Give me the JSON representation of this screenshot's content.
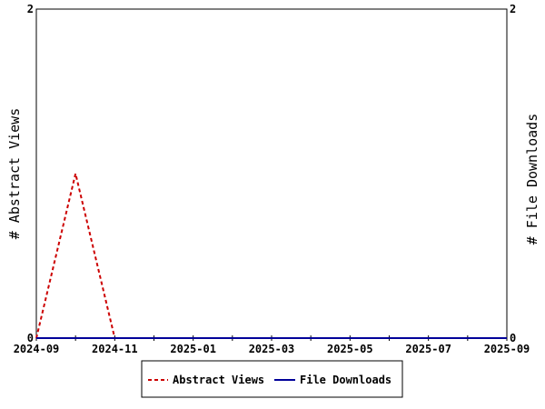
{
  "chart_data": {
    "type": "line",
    "x": [
      "2024-09",
      "2024-10",
      "2024-11",
      "2024-12",
      "2025-01",
      "2025-02",
      "2025-03",
      "2025-04",
      "2025-05",
      "2025-06",
      "2025-07",
      "2025-08",
      "2025-09"
    ],
    "x_tick_labels": [
      "2024-09",
      "2024-11",
      "2025-01",
      "2025-03",
      "2025-05",
      "2025-07",
      "2025-09"
    ],
    "series": [
      {
        "name": "Abstract Views",
        "axis": "left",
        "color": "#cc0000",
        "dash": "dashed",
        "values": [
          0,
          1,
          0,
          0,
          0,
          0,
          0,
          0,
          0,
          0,
          0,
          0,
          0
        ]
      },
      {
        "name": "File Downloads",
        "axis": "right",
        "color": "#000099",
        "dash": "solid",
        "values": [
          0,
          0,
          0,
          0,
          0,
          0,
          0,
          0,
          0,
          0,
          0,
          0,
          0
        ]
      }
    ],
    "ylabel_left": "# Abstract Views",
    "ylabel_right": "# File Downloads",
    "ylim_left": [
      0,
      2
    ],
    "ylim_right": [
      0,
      2
    ],
    "yticks_left": [
      "0",
      "2"
    ],
    "yticks_right": [
      "0",
      "2"
    ],
    "grid": false,
    "legend_position": "bottom-center"
  }
}
